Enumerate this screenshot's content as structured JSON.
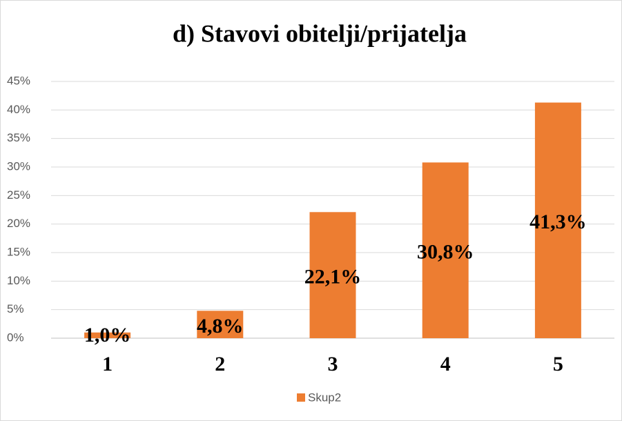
{
  "chart_data": {
    "type": "bar",
    "title": "d) Stavovi obitelji/prijatelja",
    "categories": [
      "1",
      "2",
      "3",
      "4",
      "5"
    ],
    "series": [
      {
        "name": "Skup2",
        "color": "#ed7d31",
        "values": [
          1.0,
          4.8,
          22.1,
          30.8,
          41.3
        ],
        "value_labels": [
          "1,0%",
          "4,8%",
          "22,1%",
          "30,8%",
          "41,3%"
        ]
      }
    ],
    "ylim": [
      0,
      45
    ],
    "yticks": [
      {
        "value": 0,
        "label": "0%"
      },
      {
        "value": 5,
        "label": "5%"
      },
      {
        "value": 10,
        "label": "10%"
      },
      {
        "value": 15,
        "label": "15%"
      },
      {
        "value": 20,
        "label": "20%"
      },
      {
        "value": 25,
        "label": "25%"
      },
      {
        "value": 30,
        "label": "30%"
      },
      {
        "value": 35,
        "label": "35%"
      },
      {
        "value": 40,
        "label": "40%"
      },
      {
        "value": 45,
        "label": "45%"
      }
    ],
    "grid": true,
    "legend": "bottom"
  }
}
